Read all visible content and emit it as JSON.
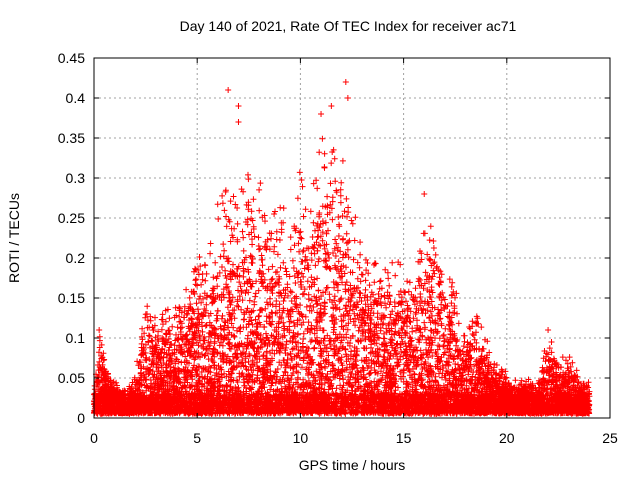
{
  "chart_data": {
    "type": "scatter",
    "title": "Day 140 of 2021, Rate Of TEC Index for receiver ac71",
    "xlabel": "GPS time / hours",
    "ylabel": "ROTI / TECUs",
    "xlim": [
      0,
      25
    ],
    "ylim": [
      0,
      0.45
    ],
    "x_ticks": [
      "0",
      "5",
      "10",
      "15",
      "20",
      "25"
    ],
    "y_ticks": [
      "0",
      "0.05",
      "0.1",
      "0.15",
      "0.2",
      "0.25",
      "0.3",
      "0.35",
      "0.4",
      "0.45"
    ],
    "grid": true,
    "legend": "none",
    "marker": "+",
    "color": "#ff0000",
    "x_range_observed": [
      0,
      24
    ],
    "envelope": {
      "x": [
        0,
        0.3,
        0.6,
        1.0,
        1.5,
        2.0,
        2.5,
        3.0,
        3.5,
        4.0,
        4.5,
        5.0,
        5.5,
        6.0,
        6.5,
        7.0,
        7.5,
        8.0,
        8.5,
        9.0,
        9.5,
        10.0,
        10.5,
        11.0,
        11.5,
        12.0,
        12.5,
        13.0,
        13.5,
        14.0,
        14.5,
        15.0,
        15.5,
        16.0,
        16.5,
        17.0,
        17.5,
        18.0,
        18.5,
        19.0,
        19.5,
        20.0,
        20.5,
        21.0,
        21.5,
        22.0,
        22.5,
        23.0,
        23.5,
        24.0
      ],
      "y": [
        0.04,
        0.11,
        0.06,
        0.04,
        0.03,
        0.05,
        0.16,
        0.12,
        0.15,
        0.14,
        0.18,
        0.22,
        0.2,
        0.27,
        0.32,
        0.28,
        0.33,
        0.3,
        0.26,
        0.29,
        0.24,
        0.34,
        0.3,
        0.38,
        0.36,
        0.34,
        0.28,
        0.22,
        0.2,
        0.2,
        0.22,
        0.2,
        0.18,
        0.28,
        0.24,
        0.2,
        0.16,
        0.12,
        0.15,
        0.1,
        0.07,
        0.05,
        0.04,
        0.05,
        0.04,
        0.11,
        0.07,
        0.08,
        0.05,
        0.04
      ]
    },
    "outliers": [
      {
        "x": 0.25,
        "y": 0.11
      },
      {
        "x": 6.5,
        "y": 0.41
      },
      {
        "x": 7.0,
        "y": 0.39
      },
      {
        "x": 7.0,
        "y": 0.37
      },
      {
        "x": 11.0,
        "y": 0.38
      },
      {
        "x": 11.5,
        "y": 0.39
      },
      {
        "x": 12.2,
        "y": 0.42
      },
      {
        "x": 12.3,
        "y": 0.4
      },
      {
        "x": 16.0,
        "y": 0.28
      },
      {
        "x": 22.0,
        "y": 0.11
      }
    ]
  }
}
